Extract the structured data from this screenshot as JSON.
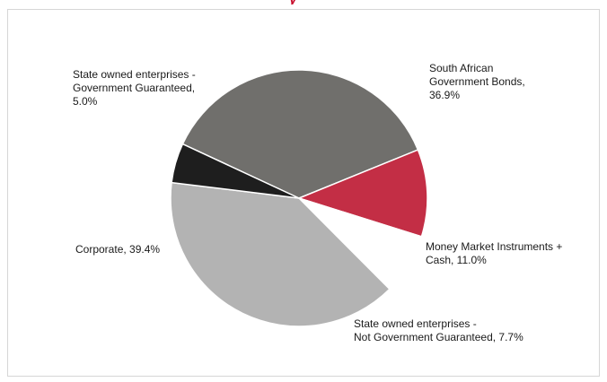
{
  "title_fragment": "y",
  "chart_data": {
    "type": "pie",
    "title": "",
    "slices": [
      {
        "lines": [
          "South African",
          "Government Bonds,",
          "36.9%"
        ],
        "value": 36.9,
        "color": "#706f6c"
      },
      {
        "lines": [
          "Money Market Instruments +",
          "Cash, 11.0%"
        ],
        "value": 11.0,
        "color": "#c32e45"
      },
      {
        "lines": [
          "State owned enterprises -",
          "Not Government Guaranteed, 7.7%"
        ],
        "value": 7.7,
        "color": "#ffffff"
      },
      {
        "lines": [
          "Corporate, 39.4%"
        ],
        "value": 39.4,
        "color": "#b3b3b3"
      },
      {
        "lines": [
          "State owned enterprises -",
          "Government Guaranteed,",
          "5.0%"
        ],
        "value": 5.0,
        "color": "#1e1e1e"
      }
    ]
  }
}
